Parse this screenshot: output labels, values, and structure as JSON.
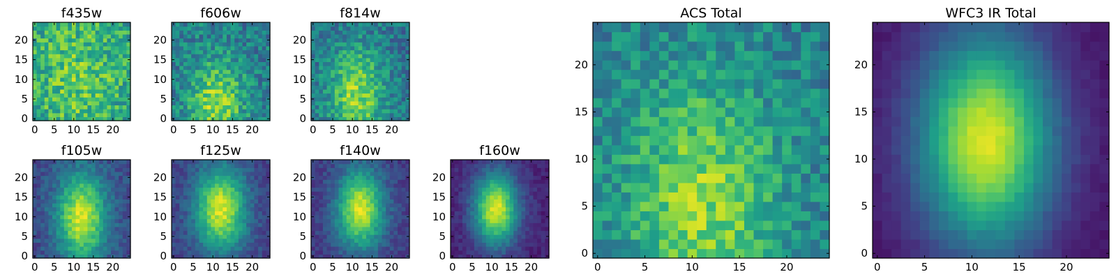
{
  "chart_data": [
    {
      "type": "heatmap",
      "title": "f435w",
      "grid_size": 25,
      "colormap": "viridis",
      "x_ticks": [
        0,
        5,
        10,
        15,
        20
      ],
      "y_ticks": [
        0,
        5,
        10,
        15,
        20
      ],
      "xlim": [
        -0.5,
        24.5
      ],
      "ylim": [
        -0.5,
        24.5
      ],
      "model": {
        "peak_x": 11,
        "peak_y": 10,
        "sigma_x": 8,
        "sigma_y": 12,
        "floor": 0.55,
        "amplitude": 0.2,
        "noise": 0.4,
        "seed": 11
      }
    },
    {
      "type": "heatmap",
      "title": "f606w",
      "grid_size": 25,
      "colormap": "viridis",
      "x_ticks": [
        0,
        5,
        10,
        15,
        20
      ],
      "y_ticks": [
        0,
        5,
        10,
        15,
        20
      ],
      "xlim": [
        -0.5,
        24.5
      ],
      "ylim": [
        -0.5,
        24.5
      ],
      "model": {
        "peak_x": 11,
        "peak_y": 4,
        "sigma_x": 5,
        "sigma_y": 8,
        "floor": 0.42,
        "amplitude": 0.42,
        "noise": 0.35,
        "seed": 23
      }
    },
    {
      "type": "heatmap",
      "title": "f814w",
      "grid_size": 25,
      "colormap": "viridis",
      "x_ticks": [
        0,
        5,
        10,
        15,
        20
      ],
      "y_ticks": [
        0,
        5,
        10,
        15,
        20
      ],
      "xlim": [
        -0.5,
        24.5
      ],
      "ylim": [
        -0.5,
        24.5
      ],
      "model": {
        "peak_x": 11,
        "peak_y": 6,
        "sigma_x": 5,
        "sigma_y": 9,
        "floor": 0.38,
        "amplitude": 0.45,
        "noise": 0.32,
        "seed": 37
      }
    },
    {
      "type": "heatmap",
      "title": "f105w",
      "grid_size": 25,
      "colormap": "viridis",
      "x_ticks": [
        0,
        5,
        10,
        15,
        20
      ],
      "y_ticks": [
        0,
        5,
        10,
        15,
        20
      ],
      "xlim": [
        -0.5,
        24.5
      ],
      "ylim": [
        -0.5,
        24.5
      ],
      "model": {
        "peak_x": 12,
        "peak_y": 10,
        "sigma_x": 4.5,
        "sigma_y": 8,
        "floor": 0.22,
        "amplitude": 0.72,
        "noise": 0.18,
        "seed": 41
      }
    },
    {
      "type": "heatmap",
      "title": "f125w",
      "grid_size": 25,
      "colormap": "viridis",
      "x_ticks": [
        0,
        5,
        10,
        15,
        20
      ],
      "y_ticks": [
        0,
        5,
        10,
        15,
        20
      ],
      "xlim": [
        -0.5,
        24.5
      ],
      "ylim": [
        -0.5,
        24.5
      ],
      "model": {
        "peak_x": 12,
        "peak_y": 12,
        "sigma_x": 4.5,
        "sigma_y": 7.5,
        "floor": 0.2,
        "amplitude": 0.74,
        "noise": 0.16,
        "seed": 53
      }
    },
    {
      "type": "heatmap",
      "title": "f140w",
      "grid_size": 25,
      "colormap": "viridis",
      "x_ticks": [
        0,
        5,
        10,
        15,
        20
      ],
      "y_ticks": [
        0,
        5,
        10,
        15,
        20
      ],
      "xlim": [
        -0.5,
        24.5
      ],
      "ylim": [
        -0.5,
        24.5
      ],
      "model": {
        "peak_x": 12,
        "peak_y": 12,
        "sigma_x": 4.2,
        "sigma_y": 7,
        "floor": 0.18,
        "amplitude": 0.76,
        "noise": 0.15,
        "seed": 67
      }
    },
    {
      "type": "heatmap",
      "title": "f160w",
      "grid_size": 25,
      "colormap": "viridis",
      "x_ticks": [
        0,
        5,
        10,
        15,
        20
      ],
      "y_ticks": [
        0,
        5,
        10,
        15,
        20
      ],
      "xlim": [
        -0.5,
        24.5
      ],
      "ylim": [
        -0.5,
        24.5
      ],
      "model": {
        "peak_x": 11,
        "peak_y": 12,
        "sigma_x": 4,
        "sigma_y": 6.5,
        "floor": 0.1,
        "amplitude": 0.85,
        "noise": 0.12,
        "seed": 79
      }
    },
    {
      "type": "heatmap",
      "title": "ACS Total",
      "grid_size": 25,
      "colormap": "viridis",
      "x_ticks": [
        0,
        5,
        10,
        15,
        20
      ],
      "y_ticks": [
        0,
        5,
        10,
        15,
        20
      ],
      "xlim": [
        -0.5,
        24.5
      ],
      "ylim": [
        -0.5,
        24.5
      ],
      "model": {
        "peak_x": 11,
        "peak_y": 5,
        "sigma_x": 6,
        "sigma_y": 10,
        "floor": 0.42,
        "amplitude": 0.4,
        "noise": 0.3,
        "seed": 97
      }
    },
    {
      "type": "heatmap",
      "title": "WFC3 IR Total",
      "grid_size": 25,
      "colormap": "viridis",
      "x_ticks": [
        0,
        5,
        10,
        15,
        20
      ],
      "y_ticks": [
        0,
        5,
        10,
        15,
        20
      ],
      "xlim": [
        -0.5,
        24.5
      ],
      "ylim": [
        -0.5,
        24.5
      ],
      "model": {
        "peak_x": 11.5,
        "peak_y": 12,
        "sigma_x": 5,
        "sigma_y": 8,
        "floor": 0.05,
        "amplitude": 0.9,
        "noise": 0.05,
        "seed": 131
      }
    }
  ],
  "colors": {
    "viridis": [
      "#440154",
      "#482878",
      "#3e4989",
      "#31688e",
      "#26828e",
      "#1f9e89",
      "#35b779",
      "#6ece58",
      "#b5de2b",
      "#fde725"
    ],
    "frame": "#000000"
  }
}
